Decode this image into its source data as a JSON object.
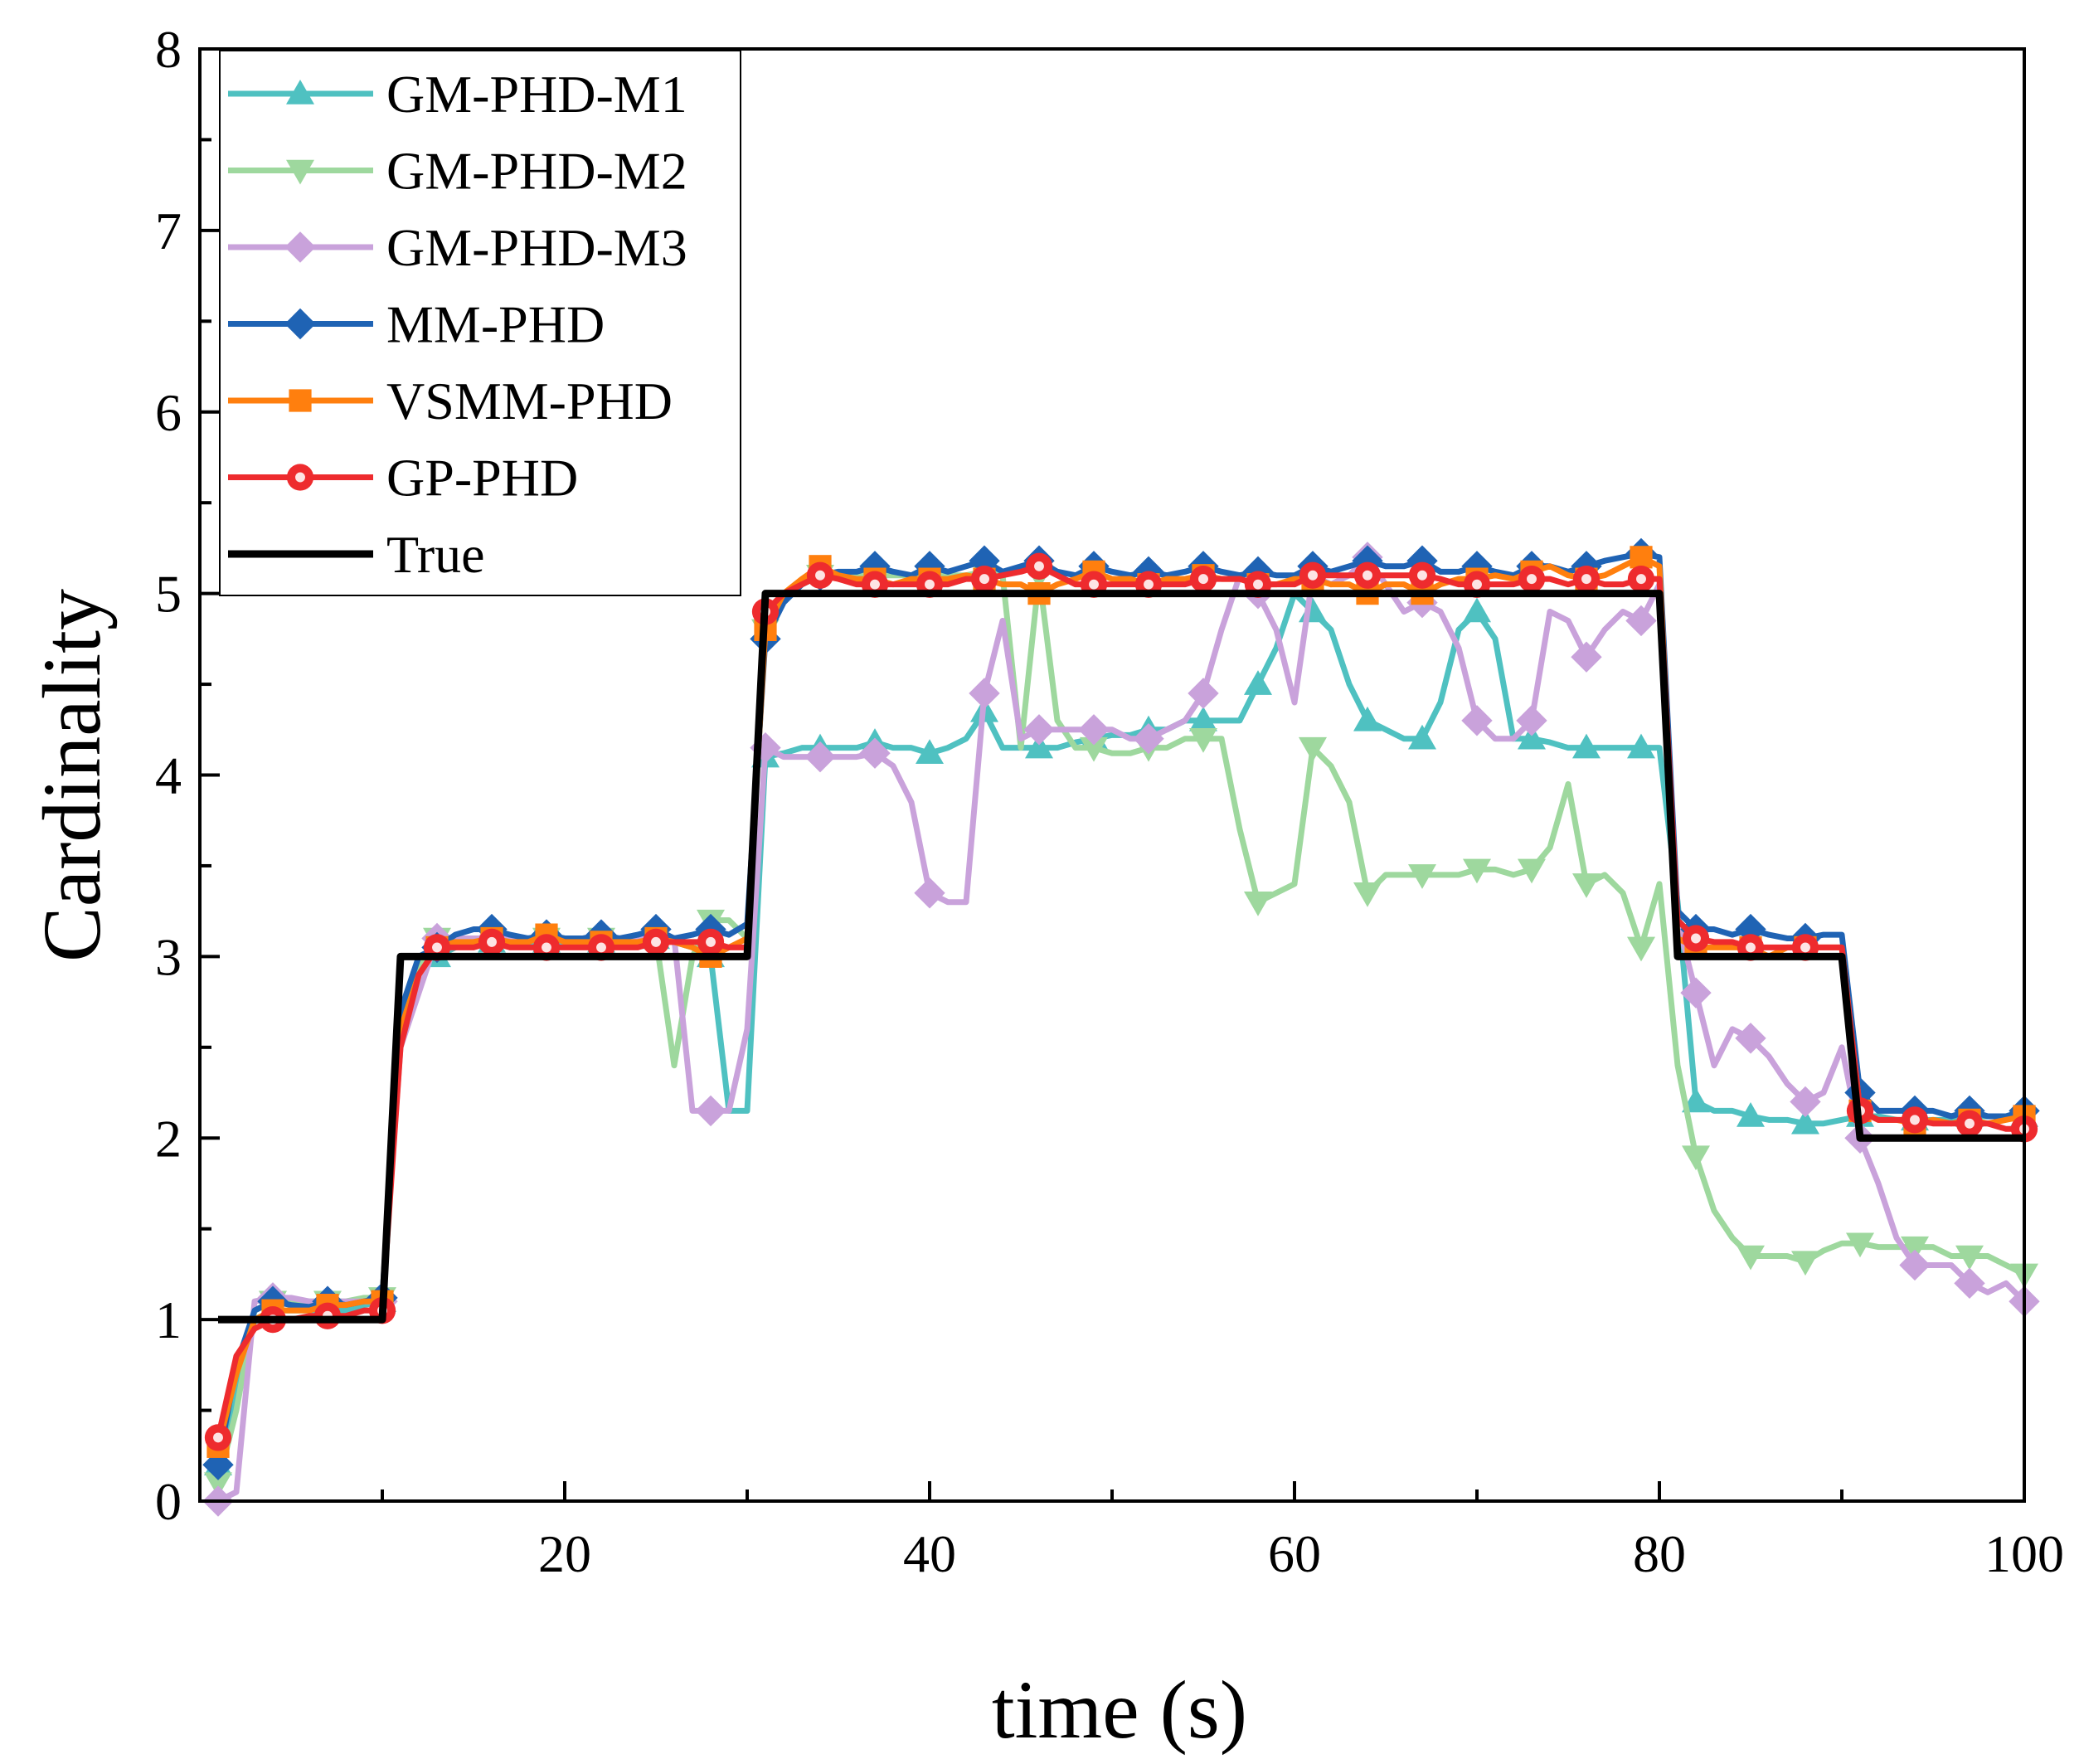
{
  "chart_data": {
    "type": "line",
    "title": "",
    "xlabel": "time (s)",
    "ylabel": "Cardinality",
    "xlim": [
      0,
      100
    ],
    "ylim": [
      0,
      8
    ],
    "xticks": [
      20,
      40,
      60,
      80,
      100
    ],
    "xtick_labels": [
      "20",
      "40",
      "60",
      "80",
      "100"
    ],
    "yticks": [
      0,
      1,
      2,
      3,
      4,
      5,
      6,
      7,
      8
    ],
    "ytick_labels": [
      "0",
      "1",
      "2",
      "3",
      "4",
      "5",
      "6",
      "7",
      "8"
    ],
    "grid": false,
    "legend_position": "top-left",
    "x_start": 1,
    "marker_every": 3,
    "series": [
      {
        "name": "GM-PHD-M1",
        "color": "#4fc1c1",
        "marker": "triangle-up",
        "values": [
          0.2,
          0.6,
          1.0,
          1.05,
          1.05,
          1.05,
          1.05,
          1.05,
          1.08,
          1.1,
          2.6,
          2.95,
          3.0,
          3.05,
          3.08,
          3.08,
          3.08,
          3.08,
          3.08,
          3.08,
          3.08,
          3.08,
          3.08,
          3.08,
          3.1,
          3.08,
          3.05,
          3.0,
          2.15,
          2.15,
          4.1,
          4.12,
          4.15,
          4.15,
          4.15,
          4.15,
          4.18,
          4.15,
          4.15,
          4.12,
          4.15,
          4.2,
          4.35,
          4.15,
          4.15,
          4.15,
          4.15,
          4.18,
          4.2,
          4.22,
          4.22,
          4.25,
          4.25,
          4.3,
          4.3,
          4.3,
          4.3,
          4.5,
          4.7,
          5.0,
          4.9,
          4.8,
          4.5,
          4.3,
          4.25,
          4.2,
          4.2,
          4.4,
          4.8,
          4.9,
          4.75,
          4.2,
          4.2,
          4.18,
          4.15,
          4.15,
          4.15,
          4.15,
          4.15,
          4.15,
          3.3,
          2.2,
          2.15,
          2.15,
          2.12,
          2.1,
          2.1,
          2.08,
          2.08,
          2.1,
          2.12,
          2.12,
          2.1,
          2.1,
          2.1,
          2.1,
          2.12,
          2.12,
          2.12,
          2.12
        ]
      },
      {
        "name": "GM-PHD-M2",
        "color": "#9ed89e",
        "marker": "triangle-down",
        "values": [
          0.1,
          0.5,
          1.05,
          1.1,
          1.1,
          1.1,
          1.1,
          1.1,
          1.12,
          1.12,
          2.6,
          2.95,
          3.1,
          3.1,
          3.1,
          3.1,
          3.1,
          3.1,
          3.1,
          3.1,
          3.1,
          3.1,
          3.1,
          3.1,
          3.1,
          2.4,
          3.0,
          3.2,
          3.2,
          3.1,
          4.8,
          5.0,
          5.05,
          5.1,
          5.1,
          5.1,
          5.1,
          5.1,
          5.1,
          5.1,
          5.1,
          5.1,
          5.12,
          5.1,
          4.15,
          5.1,
          4.3,
          4.15,
          4.15,
          4.12,
          4.12,
          4.15,
          4.15,
          4.2,
          4.2,
          4.2,
          3.7,
          3.3,
          3.35,
          3.4,
          4.15,
          4.05,
          3.85,
          3.35,
          3.45,
          3.45,
          3.45,
          3.45,
          3.45,
          3.48,
          3.48,
          3.45,
          3.48,
          3.6,
          3.95,
          3.4,
          3.45,
          3.35,
          3.05,
          3.4,
          2.4,
          1.9,
          1.6,
          1.45,
          1.35,
          1.35,
          1.35,
          1.32,
          1.38,
          1.42,
          1.42,
          1.4,
          1.4,
          1.4,
          1.4,
          1.35,
          1.35,
          1.35,
          1.3,
          1.25
        ]
      },
      {
        "name": "GM-PHD-M3",
        "color": "#c9a2db",
        "marker": "diamond",
        "values": [
          0.0,
          0.05,
          1.1,
          1.12,
          1.12,
          1.1,
          1.1,
          1.1,
          1.1,
          1.1,
          2.5,
          2.8,
          3.1,
          3.1,
          3.1,
          3.1,
          3.1,
          3.1,
          3.1,
          3.1,
          3.1,
          3.1,
          3.1,
          3.1,
          3.1,
          3.1,
          2.15,
          2.15,
          2.15,
          2.6,
          4.15,
          4.1,
          4.1,
          4.1,
          4.1,
          4.1,
          4.12,
          4.05,
          3.85,
          3.35,
          3.3,
          3.3,
          4.45,
          4.85,
          4.2,
          4.25,
          4.25,
          4.25,
          4.25,
          4.25,
          4.2,
          4.2,
          4.25,
          4.3,
          4.45,
          4.8,
          5.1,
          5.0,
          4.8,
          4.4,
          5.1,
          5.05,
          5.1,
          5.2,
          5.05,
          4.9,
          4.95,
          4.9,
          4.7,
          4.3,
          4.2,
          4.2,
          4.3,
          4.9,
          4.85,
          4.65,
          4.8,
          4.9,
          4.85,
          5.05,
          3.2,
          2.8,
          2.4,
          2.6,
          2.55,
          2.45,
          2.3,
          2.2,
          2.25,
          2.5,
          2.0,
          1.75,
          1.45,
          1.3,
          1.3,
          1.3,
          1.2,
          1.15,
          1.2,
          1.1
        ]
      },
      {
        "name": "MM-PHD",
        "color": "#1f63b4",
        "marker": "diamond",
        "values": [
          0.2,
          0.75,
          1.05,
          1.1,
          1.08,
          1.07,
          1.1,
          1.08,
          1.1,
          1.12,
          2.7,
          3.0,
          3.05,
          3.12,
          3.15,
          3.15,
          3.12,
          3.1,
          3.12,
          3.1,
          3.1,
          3.12,
          3.1,
          3.12,
          3.15,
          3.1,
          3.12,
          3.15,
          3.12,
          3.18,
          4.75,
          4.95,
          5.05,
          5.1,
          5.12,
          5.12,
          5.15,
          5.12,
          5.1,
          5.15,
          5.12,
          5.15,
          5.18,
          5.12,
          5.15,
          5.18,
          5.12,
          5.1,
          5.15,
          5.12,
          5.1,
          5.12,
          5.1,
          5.12,
          5.15,
          5.12,
          5.1,
          5.12,
          5.1,
          5.1,
          5.15,
          5.12,
          5.15,
          5.18,
          5.15,
          5.15,
          5.18,
          5.12,
          5.12,
          5.15,
          5.12,
          5.1,
          5.15,
          5.15,
          5.12,
          5.15,
          5.18,
          5.2,
          5.22,
          5.2,
          3.25,
          3.15,
          3.15,
          3.12,
          3.15,
          3.12,
          3.1,
          3.1,
          3.12,
          3.12,
          2.25,
          2.15,
          2.15,
          2.15,
          2.15,
          2.12,
          2.15,
          2.12,
          2.12,
          2.15
        ]
      },
      {
        "name": "VSMM-PHD",
        "color": "#ff7f0e",
        "marker": "square",
        "values": [
          0.3,
          0.7,
          1.0,
          1.05,
          1.05,
          1.05,
          1.08,
          1.08,
          1.1,
          1.1,
          2.6,
          2.9,
          3.05,
          3.08,
          3.08,
          3.1,
          3.08,
          3.08,
          3.12,
          3.08,
          3.08,
          3.08,
          3.08,
          3.08,
          3.1,
          3.08,
          3.05,
          3.0,
          3.05,
          3.1,
          4.8,
          5.0,
          5.08,
          5.15,
          5.1,
          5.08,
          5.08,
          5.05,
          5.08,
          5.08,
          5.08,
          5.1,
          5.08,
          5.05,
          5.05,
          5.0,
          5.05,
          5.08,
          5.12,
          5.08,
          5.08,
          5.05,
          5.08,
          5.08,
          5.1,
          5.08,
          5.08,
          5.05,
          5.05,
          5.08,
          5.08,
          5.05,
          5.05,
          5.0,
          5.05,
          5.05,
          5.0,
          5.05,
          5.08,
          5.08,
          5.1,
          5.08,
          5.12,
          5.15,
          5.1,
          5.08,
          5.1,
          5.15,
          5.2,
          5.15,
          3.1,
          3.05,
          3.05,
          3.05,
          3.05,
          3.0,
          3.05,
          3.05,
          3.05,
          3.05,
          2.15,
          2.1,
          2.1,
          2.08,
          2.1,
          2.08,
          2.1,
          2.08,
          2.1,
          2.12
        ]
      },
      {
        "name": "GP-PHD",
        "color": "#ee2b2e",
        "marker": "circle",
        "values": [
          0.35,
          0.8,
          0.95,
          1.0,
          1.0,
          1.02,
          1.02,
          1.02,
          1.05,
          1.05,
          2.5,
          2.9,
          3.05,
          3.05,
          3.05,
          3.08,
          3.05,
          3.05,
          3.05,
          3.05,
          3.05,
          3.05,
          3.05,
          3.05,
          3.08,
          3.08,
          3.08,
          3.08,
          3.05,
          3.05,
          4.9,
          5.0,
          5.05,
          5.1,
          5.08,
          5.05,
          5.05,
          5.05,
          5.05,
          5.05,
          5.05,
          5.08,
          5.08,
          5.1,
          5.12,
          5.15,
          5.1,
          5.05,
          5.05,
          5.05,
          5.05,
          5.05,
          5.05,
          5.05,
          5.08,
          5.08,
          5.08,
          5.05,
          5.05,
          5.05,
          5.1,
          5.1,
          5.1,
          5.1,
          5.1,
          5.1,
          5.1,
          5.08,
          5.05,
          5.05,
          5.05,
          5.05,
          5.08,
          5.08,
          5.05,
          5.08,
          5.05,
          5.05,
          5.08,
          5.08,
          3.2,
          3.1,
          3.08,
          3.08,
          3.05,
          3.05,
          3.05,
          3.05,
          3.05,
          3.05,
          2.15,
          2.1,
          2.1,
          2.1,
          2.08,
          2.08,
          2.08,
          2.08,
          2.05,
          2.05
        ]
      },
      {
        "name": "True",
        "color": "#000000",
        "marker": "none",
        "values": [
          1,
          1,
          1,
          1,
          1,
          1,
          1,
          1,
          1,
          1,
          3,
          3,
          3,
          3,
          3,
          3,
          3,
          3,
          3,
          3,
          3,
          3,
          3,
          3,
          3,
          3,
          3,
          3,
          3,
          3,
          5,
          5,
          5,
          5,
          5,
          5,
          5,
          5,
          5,
          5,
          5,
          5,
          5,
          5,
          5,
          5,
          5,
          5,
          5,
          5,
          5,
          5,
          5,
          5,
          5,
          5,
          5,
          5,
          5,
          5,
          5,
          5,
          5,
          5,
          5,
          5,
          5,
          5,
          5,
          5,
          5,
          5,
          5,
          5,
          5,
          5,
          5,
          5,
          5,
          5,
          3,
          3,
          3,
          3,
          3,
          3,
          3,
          3,
          3,
          3,
          2,
          2,
          2,
          2,
          2,
          2,
          2,
          2,
          2,
          2
        ]
      }
    ]
  }
}
